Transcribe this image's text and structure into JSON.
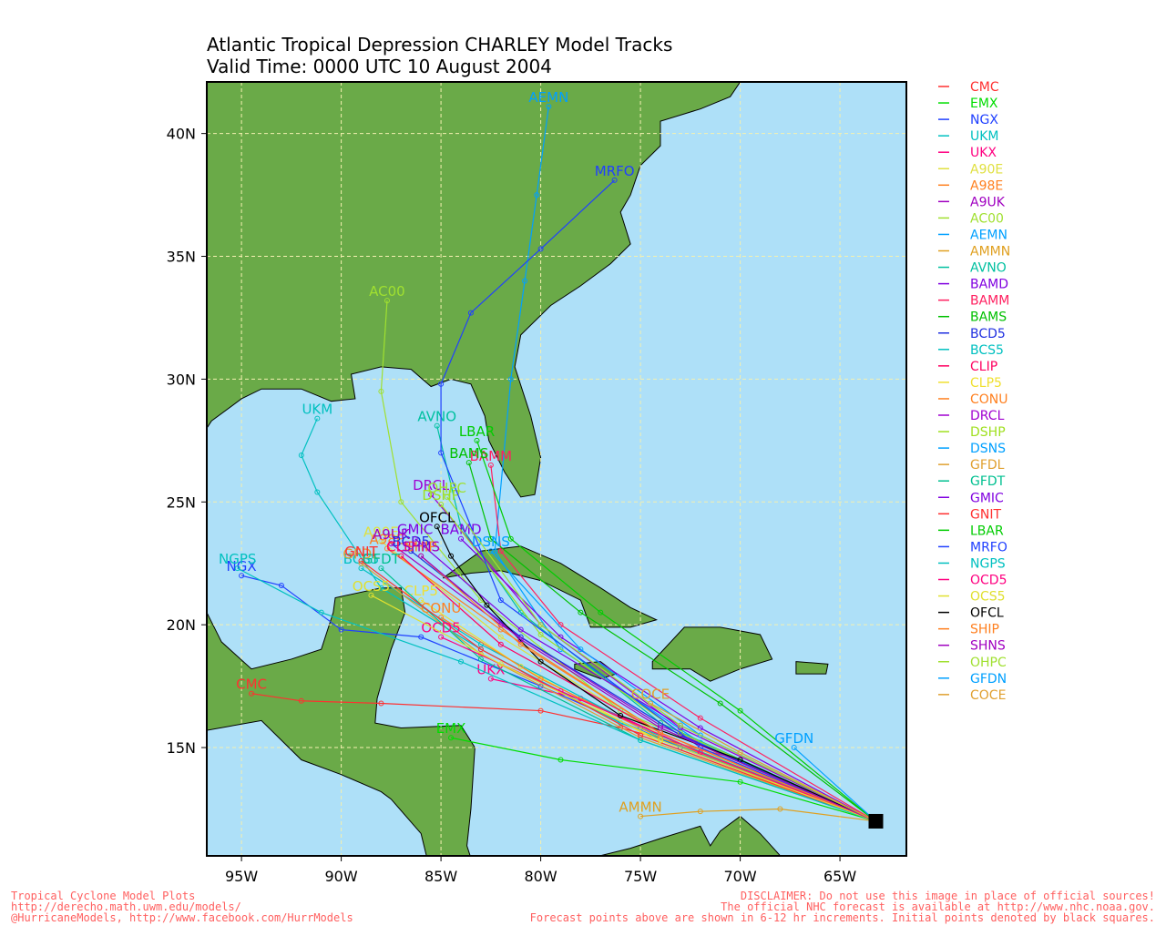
{
  "map": {
    "title": "Atlantic Tropical Depression CHARLEY Model Tracks",
    "subtitle": "Valid Time: 0000 UTC 10 August 2004",
    "xlim": [
      -96.74,
      -61.67
    ],
    "ylim": [
      10.59,
      42.1
    ],
    "xticks": [
      {
        "value": -95,
        "label": "95W"
      },
      {
        "value": -90,
        "label": "90W"
      },
      {
        "value": -85,
        "label": "85W"
      },
      {
        "value": -80,
        "label": "80W"
      },
      {
        "value": -75,
        "label": "75W"
      },
      {
        "value": -70,
        "label": "70W"
      },
      {
        "value": -65,
        "label": "65W"
      }
    ],
    "yticks": [
      {
        "value": 15,
        "label": "15N"
      },
      {
        "value": 20,
        "label": "20N"
      },
      {
        "value": 25,
        "label": "25N"
      },
      {
        "value": 30,
        "label": "30N"
      },
      {
        "value": 35,
        "label": "35N"
      },
      {
        "value": 40,
        "label": "40N"
      }
    ],
    "grid": true,
    "tracks": [
      {
        "name": "CMC",
        "color": "#ff3030",
        "lon": [
          -63.2,
          -70,
          -76,
          -80,
          -88,
          -92,
          -94.5
        ],
        "lat": [
          12,
          14.5,
          15.8,
          16.5,
          16.8,
          16.9,
          17.2
        ]
      },
      {
        "name": "EMX",
        "color": "#00dd00",
        "lon": [
          -63.2,
          -70,
          -79,
          -84.5
        ],
        "lat": [
          12,
          13.6,
          14.5,
          15.4
        ]
      },
      {
        "name": "NGX",
        "color": "#2040ff",
        "lon": [
          -63.2,
          -73,
          -80,
          -86,
          -90,
          -93,
          -95
        ],
        "lat": [
          12,
          15,
          17.5,
          19.5,
          19.8,
          21.6,
          22
        ]
      },
      {
        "name": "UKM",
        "color": "#00c0c0",
        "lon": [
          -63.2,
          -76,
          -83,
          -88,
          -91.2,
          -92,
          -91.2
        ],
        "lat": [
          12,
          16,
          19,
          21.5,
          25.4,
          26.9,
          28.4
        ]
      },
      {
        "name": "UKX",
        "color": "#ff0080",
        "lon": [
          -63.2,
          -72,
          -78,
          -82.5
        ],
        "lat": [
          12,
          14.8,
          17,
          17.8
        ]
      },
      {
        "name": "A90E",
        "color": "#e0e040",
        "lon": [
          -63.2,
          -74,
          -82,
          -88
        ],
        "lat": [
          12,
          15.5,
          19.5,
          23.4
        ]
      },
      {
        "name": "A98E",
        "color": "#ff8020",
        "lon": [
          -63.2,
          -74,
          -82,
          -87.7
        ],
        "lat": [
          12,
          15.6,
          19.8,
          23.1
        ]
      },
      {
        "name": "A9UK",
        "color": "#a000c0",
        "lon": [
          -63.2,
          -74,
          -82,
          -87.5
        ],
        "lat": [
          12,
          15.9,
          20,
          23.3
        ]
      },
      {
        "name": "AC00",
        "color": "#a0e030",
        "lon": [
          -63.2,
          -76,
          -83,
          -87,
          -88,
          -87.7
        ],
        "lat": [
          12,
          16.5,
          21,
          25,
          29.5,
          33.2
        ]
      },
      {
        "name": "AEMN",
        "color": "#00a0ff",
        "lon": [
          -63.2,
          -72,
          -79,
          -82.3,
          -81.5,
          -80.8,
          -80.2,
          -79.6
        ],
        "lat": [
          12,
          15.2,
          19,
          23,
          30,
          34,
          37.5,
          41.1
        ]
      },
      {
        "name": "AMMN",
        "color": "#e0a020",
        "lon": [
          -63.2,
          -68,
          -72,
          -75
        ],
        "lat": [
          12,
          12.5,
          12.4,
          12.2
        ]
      },
      {
        "name": "AVNO",
        "color": "#00c0a0",
        "lon": [
          -63.2,
          -74,
          -81,
          -84,
          -85.2
        ],
        "lat": [
          12,
          16,
          20.5,
          24,
          28.1
        ]
      },
      {
        "name": "BAMD",
        "color": "#8000e0",
        "lon": [
          -63.2,
          -72,
          -79,
          -84
        ],
        "lat": [
          12,
          15.8,
          19.5,
          23.5
        ]
      },
      {
        "name": "BAMM",
        "color": "#ff2060",
        "lon": [
          -63.2,
          -72,
          -79,
          -82,
          -82.5
        ],
        "lat": [
          12,
          16.2,
          20,
          23,
          26.5
        ]
      },
      {
        "name": "BAMS",
        "color": "#00c000",
        "lon": [
          -63.2,
          -71,
          -78,
          -82.5,
          -83.6
        ],
        "lat": [
          12,
          16.8,
          20.5,
          23.5,
          26.6
        ]
      },
      {
        "name": "BCD5",
        "color": "#2030e0",
        "lon": [
          -63.2,
          -73,
          -81,
          -86.5
        ],
        "lat": [
          12,
          15.5,
          19.5,
          23
        ]
      },
      {
        "name": "BCS5",
        "color": "#00c0c0",
        "lon": [
          -63.2,
          -75,
          -83,
          -89
        ],
        "lat": [
          12,
          15.8,
          19.2,
          22.3
        ]
      },
      {
        "name": "CLIP",
        "color": "#ff0060",
        "lon": [
          -63.2,
          -74,
          -82,
          -87
        ],
        "lat": [
          12,
          15.6,
          19.2,
          22.8
        ]
      },
      {
        "name": "CLP5",
        "color": "#f0e030",
        "lon": [
          -63.2,
          -74,
          -81,
          -86
        ],
        "lat": [
          12,
          15.2,
          18.3,
          21
        ]
      },
      {
        "name": "CONU",
        "color": "#ff8020",
        "lon": [
          -63.2,
          -74,
          -80,
          -85
        ],
        "lat": [
          12,
          15.4,
          17.8,
          20.3
        ]
      },
      {
        "name": "DRCL",
        "color": "#a000d0",
        "lon": [
          -63.2,
          -73,
          -80,
          -85.5
        ],
        "lat": [
          12,
          15.8,
          20,
          25.3
        ]
      },
      {
        "name": "DSHP",
        "color": "#a0e020",
        "lon": [
          -63.2,
          -73,
          -80,
          -85
        ],
        "lat": [
          12,
          15.6,
          19.6,
          24.9
        ]
      },
      {
        "name": "DSNS",
        "color": "#00a0ff",
        "lon": [
          -63.2,
          -72,
          -78,
          -82.5
        ],
        "lat": [
          12,
          15.5,
          19,
          23
        ]
      },
      {
        "name": "GFDL",
        "color": "#e0a030",
        "lon": [
          -63.2,
          -75,
          -83,
          -89
        ],
        "lat": [
          12,
          15.4,
          18.8,
          22.5
        ]
      },
      {
        "name": "GFDT",
        "color": "#00c090",
        "lon": [
          -63.2,
          -75,
          -83,
          -88
        ],
        "lat": [
          12,
          15.3,
          18.6,
          22.3
        ]
      },
      {
        "name": "GMIC",
        "color": "#8000e0",
        "lon": [
          -63.2,
          -73,
          -81,
          -86.3
        ],
        "lat": [
          12,
          15.9,
          19.8,
          23.5
        ]
      },
      {
        "name": "GNIT",
        "color": "#ff3030",
        "lon": [
          -63.2,
          -75,
          -83,
          -89
        ],
        "lat": [
          12,
          15.5,
          19,
          22.6
        ]
      },
      {
        "name": "LBAR",
        "color": "#00cc00",
        "lon": [
          -63.2,
          -70,
          -77,
          -81.5,
          -83.2
        ],
        "lat": [
          12,
          16.5,
          20.5,
          23.5,
          27.5
        ]
      },
      {
        "name": "MRFO",
        "color": "#2040ff",
        "lon": [
          -63.2,
          -72,
          -82,
          -85,
          -85,
          -83.5,
          -80,
          -76.3
        ],
        "lat": [
          12,
          15,
          21,
          27,
          29.8,
          32.7,
          35.3,
          38.1
        ]
      },
      {
        "name": "NGPS",
        "color": "#00c0c0",
        "lon": [
          -63.2,
          -75,
          -84,
          -91,
          -95.2
        ],
        "lat": [
          12,
          15.3,
          18.5,
          20.5,
          22.3
        ]
      },
      {
        "name": "OCD5",
        "color": "#ff0080",
        "lon": [
          -63.2,
          -72,
          -79,
          -85
        ],
        "lat": [
          12,
          14.8,
          17.3,
          19.5
        ]
      },
      {
        "name": "OCS5",
        "color": "#e0e030",
        "lon": [
          -63.2,
          -74,
          -82,
          -88.5
        ],
        "lat": [
          12,
          15.3,
          18.4,
          21.2
        ]
      },
      {
        "name": "OFCL",
        "color": "#000000",
        "lon": [
          -63.2,
          -70,
          -76,
          -80,
          -82.7,
          -84.5,
          -85.2
        ],
        "lat": [
          12,
          14.5,
          16.3,
          18.5,
          20.8,
          22.8,
          24
        ]
      },
      {
        "name": "SHIP",
        "color": "#ff8020",
        "lon": [
          -63.2,
          -74,
          -81,
          -86
        ],
        "lat": [
          12,
          15.6,
          19.2,
          22.8
        ]
      },
      {
        "name": "SHNS",
        "color": "#a000c0",
        "lon": [
          -63.2,
          -74,
          -81,
          -86
        ],
        "lat": [
          12,
          15.8,
          19.4,
          22.8
        ]
      },
      {
        "name": "OHPC",
        "color": "#a0e030",
        "lon": [
          -63.2,
          -73,
          -80,
          -84.7
        ],
        "lat": [
          12,
          15.9,
          20,
          25.2
        ]
      },
      {
        "name": "GFDN",
        "color": "#00a0ff",
        "lon": [
          -63.2,
          -67.3
        ],
        "lat": [
          12,
          15
        ]
      },
      {
        "name": "COCE",
        "color": "#e0a030",
        "lon": [
          -63.2,
          -70,
          -74.5
        ],
        "lat": [
          12,
          14.8,
          16.8
        ]
      }
    ],
    "footer_left": [
      "Tropical Cyclone Model Plots",
      "http://derecho.math.uwm.edu/models/",
      "@HurricaneModels, http://www.facebook.com/HurrModels"
    ],
    "footer_right": [
      "DISCLAIMER: Do not use this image in place of official sources!",
      "The official NHC forecast is available at http://www.nhc.noaa.gov.",
      "Forecast points above are shown in 6-12 hr increments. Initial points denoted by black squares."
    ]
  }
}
